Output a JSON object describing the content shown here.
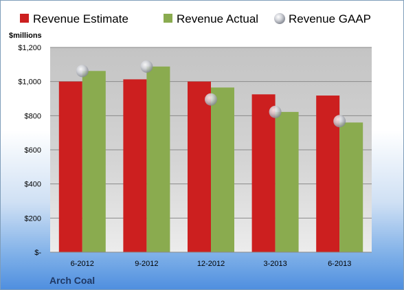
{
  "company": "Arch Coal",
  "unit_label": "$millions",
  "colors": {
    "estimate": "#cc1f1f",
    "actual": "#8aab4f",
    "gaap": "#b9bcc6"
  },
  "chart_data": {
    "type": "bar",
    "categories": [
      "6-2012",
      "9-2012",
      "12-2012",
      "3-2013",
      "6-2013"
    ],
    "series": [
      {
        "name": "Revenue Estimate",
        "kind": "bar",
        "values": [
          1000,
          1013,
          1000,
          925,
          918
        ]
      },
      {
        "name": "Revenue Actual",
        "kind": "bar",
        "values": [
          1062,
          1088,
          965,
          822,
          760
        ]
      },
      {
        "name": "Revenue GAAP",
        "kind": "marker",
        "values": [
          1062,
          1088,
          895,
          822,
          768
        ]
      }
    ],
    "ylim": [
      0,
      1200
    ],
    "yticks": [
      0,
      200,
      400,
      600,
      800,
      1000,
      1200
    ],
    "ytick_labels": [
      "$-",
      "$200",
      "$400",
      "$600",
      "$800",
      "$1,000",
      "$1,200"
    ],
    "grid": true,
    "legend_position": "top"
  }
}
